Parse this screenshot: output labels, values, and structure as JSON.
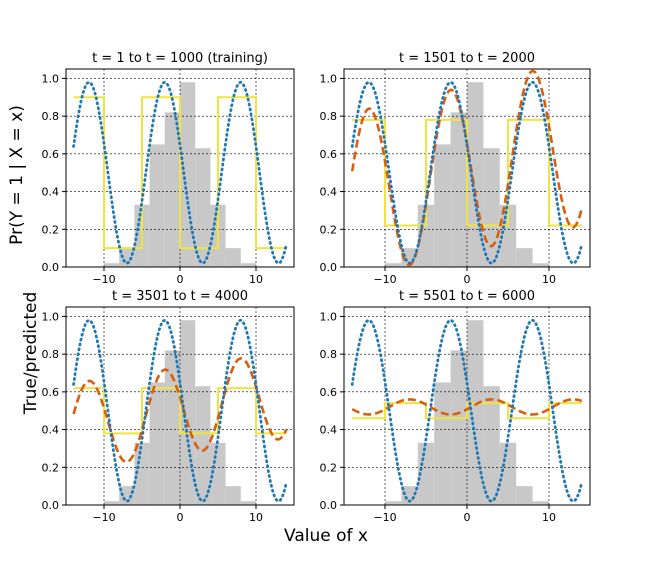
{
  "figure": {
    "ylabel_top": "Pr(Y = 1 | X = x)",
    "ylabel_bottom": "True/predicted",
    "xlabel": "Value of x"
  },
  "colors": {
    "true": "#1f77b4",
    "predicted": "#d95f0e",
    "step": "#f0e442",
    "hist": "#c8c8c8",
    "grid": "#000000"
  },
  "chart_data": [
    {
      "type": "line",
      "title": "t = 1 to t = 1000 (training)",
      "xlim": [
        -15,
        15
      ],
      "ylim": [
        0,
        1.05
      ],
      "xticks": [
        -10,
        0,
        10
      ],
      "yticks": [
        0.0,
        0.2,
        0.4,
        0.6,
        0.8,
        1.0
      ],
      "step": {
        "edges": [
          -14,
          -10,
          -5,
          0,
          5,
          10,
          14
        ],
        "values": [
          0.9,
          0.1,
          0.9,
          0.1,
          0.9,
          0.1
        ]
      },
      "histogram": {
        "bin_edges": [
          -14,
          -12,
          -10,
          -8,
          -6,
          -4,
          -2,
          0,
          2,
          4,
          6,
          8,
          10,
          12,
          14
        ],
        "heights": [
          0,
          0,
          0.02,
          0.1,
          0.33,
          0.65,
          0.82,
          0.98,
          0.63,
          0.33,
          0.1,
          0.02,
          0,
          0
        ]
      },
      "predicted": null
    },
    {
      "type": "line",
      "title": "t = 1501 to t = 2000",
      "xlim": [
        -15,
        15
      ],
      "ylim": [
        0,
        1.05
      ],
      "xticks": [
        -10,
        0,
        10
      ],
      "yticks": [
        0.0,
        0.2,
        0.4,
        0.6,
        0.8,
        1.0
      ],
      "step": {
        "edges": [
          -14,
          -10,
          -5,
          0,
          5,
          10,
          14
        ],
        "values": [
          0.78,
          0.22,
          0.78,
          0.22,
          0.78,
          0.22
        ]
      },
      "histogram": {
        "bin_edges": [
          -14,
          -12,
          -10,
          -8,
          -6,
          -4,
          -2,
          0,
          2,
          4,
          6,
          8,
          10,
          12,
          14
        ],
        "heights": [
          0,
          0,
          0.02,
          0.1,
          0.33,
          0.65,
          0.82,
          0.98,
          0.63,
          0.33,
          0.1,
          0.02,
          0,
          0
        ]
      },
      "predicted": {
        "mid": 0.52,
        "amp": 0.44,
        "tilt": 0.01
      }
    },
    {
      "type": "line",
      "title": "t = 3501 to t = 4000",
      "xlim": [
        -15,
        15
      ],
      "ylim": [
        0,
        1.05
      ],
      "xticks": [
        -10,
        0,
        10
      ],
      "yticks": [
        0.0,
        0.2,
        0.4,
        0.6,
        0.8,
        1.0
      ],
      "step": {
        "edges": [
          -14,
          -10,
          -5,
          0,
          5,
          10,
          14
        ],
        "values": [
          0.62,
          0.38,
          0.62,
          0.38,
          0.62,
          0.38
        ]
      },
      "histogram": {
        "bin_edges": [
          -14,
          -12,
          -10,
          -8,
          -6,
          -4,
          -2,
          0,
          2,
          4,
          6,
          8,
          10,
          12,
          14
        ],
        "heights": [
          0,
          0,
          0.02,
          0.1,
          0.33,
          0.65,
          0.82,
          0.98,
          0.63,
          0.33,
          0.1,
          0.02,
          0,
          0
        ]
      },
      "predicted": {
        "mid": 0.5,
        "amp": 0.23,
        "tilt": 0.006
      }
    },
    {
      "type": "line",
      "title": "t = 5501 to t = 6000",
      "xlim": [
        -15,
        15
      ],
      "ylim": [
        0,
        1.05
      ],
      "xticks": [
        -10,
        0,
        10
      ],
      "yticks": [
        0.0,
        0.2,
        0.4,
        0.6,
        0.8,
        1.0
      ],
      "step": {
        "edges": [
          -14,
          -10,
          -5,
          0,
          5,
          10,
          14
        ],
        "values": [
          0.46,
          0.54,
          0.46,
          0.54,
          0.46,
          0.54
        ]
      },
      "histogram": {
        "bin_edges": [
          -14,
          -12,
          -10,
          -8,
          -6,
          -4,
          -2,
          0,
          2,
          4,
          6,
          8,
          10,
          12,
          14
        ],
        "heights": [
          0,
          0,
          0.02,
          0.1,
          0.33,
          0.65,
          0.82,
          0.98,
          0.63,
          0.33,
          0.1,
          0.02,
          0,
          0
        ]
      },
      "predicted": {
        "mid": 0.52,
        "amp": -0.04,
        "tilt": 0
      }
    }
  ],
  "true_curve": {
    "formula": "0.5 + 0.48*cos(0.63*(x+2))",
    "x_range": [
      -14,
      14
    ]
  }
}
